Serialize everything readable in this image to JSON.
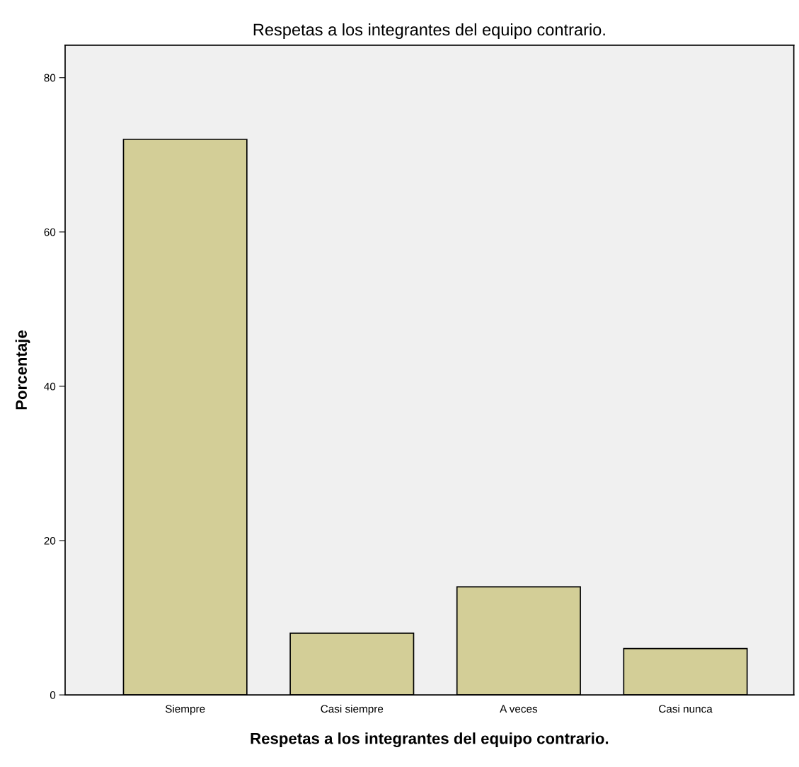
{
  "chart_data": {
    "type": "bar",
    "title": "Respetas a los integrantes del equipo contrario.",
    "xlabel": "Respetas a los integrantes del equipo contrario.",
    "ylabel": "Porcentaje",
    "categories": [
      "Siempre",
      "Casi siempre",
      "A veces",
      "Casi nunca"
    ],
    "values": [
      72,
      8,
      14,
      6
    ],
    "color": "#d3ce97",
    "ylim": [
      0,
      84.2
    ],
    "yticks": [
      0,
      20,
      40,
      60,
      80
    ],
    "grid": false,
    "legend": false
  }
}
